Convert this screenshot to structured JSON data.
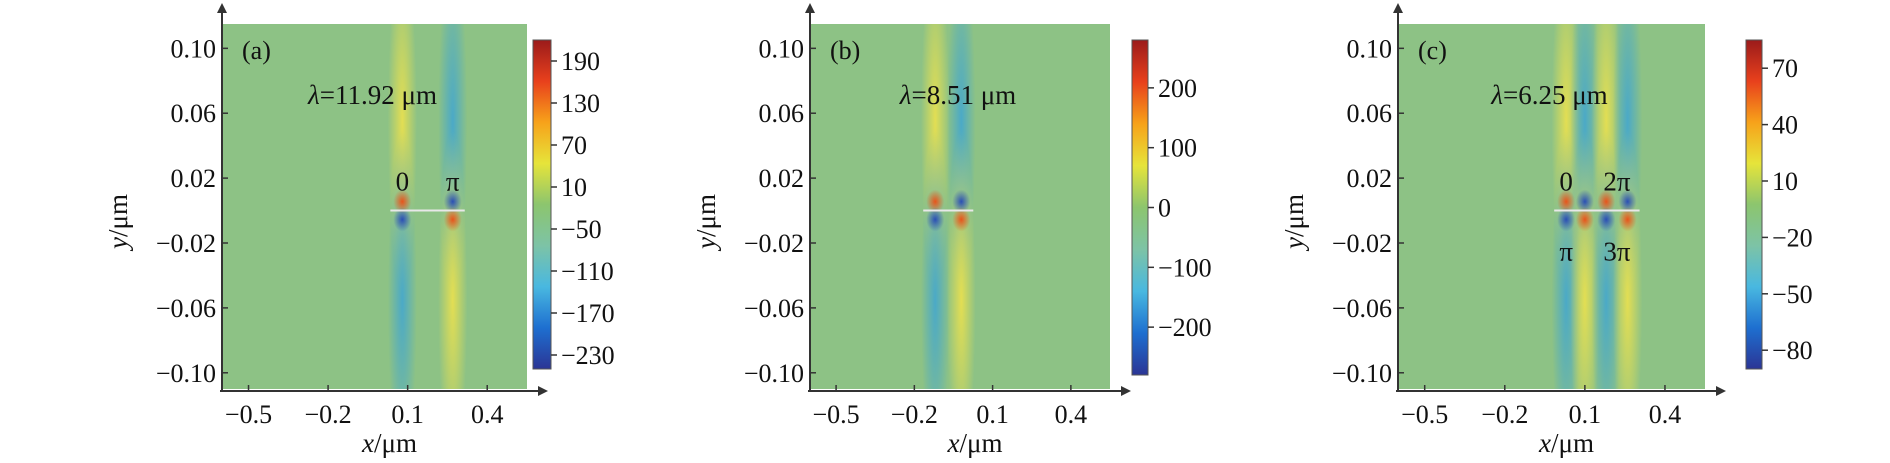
{
  "chart_data": [
    {
      "type": "heatmap",
      "panel_label": "(a)",
      "annotation": {
        "prefix": "λ",
        "text": "=11.92 μm"
      },
      "xlabel": {
        "var": "x",
        "unit": "/μm"
      },
      "ylabel": {
        "var": "y",
        "unit": "/μm"
      },
      "xlim": [
        -0.6,
        0.55
      ],
      "ylim": [
        -0.11,
        0.115
      ],
      "xticks": [
        -0.5,
        -0.2,
        0.1,
        0.4
      ],
      "xtick_labels": [
        "−0.5",
        "−0.2",
        "0.1",
        "0.4"
      ],
      "yticks": [
        0.1,
        0.06,
        0.02,
        -0.02,
        -0.06,
        -0.1
      ],
      "ytick_labels": [
        "0.10",
        "0.06",
        "0.02",
        "−0.02",
        "−0.06",
        "−0.10"
      ],
      "colorbar": {
        "range": [
          -250,
          220
        ],
        "ticks": [
          190,
          130,
          70,
          10,
          -50,
          -110,
          -170,
          -230
        ],
        "tick_labels": [
          "190",
          "130",
          "70",
          "10",
          "−50",
          "−110",
          "−170",
          "−230"
        ]
      },
      "phase_labels": [
        {
          "text": "0",
          "x": 0.08,
          "y": 0.012
        },
        {
          "text": "π",
          "x": 0.27,
          "y": 0.012
        }
      ],
      "field_features": [
        {
          "x": 0.08,
          "y": 0.0,
          "sign": "dipole",
          "strength": 1.0
        },
        {
          "x": 0.27,
          "y": 0.0,
          "sign": "dipole-inverted",
          "strength": 1.0
        }
      ]
    },
    {
      "type": "heatmap",
      "panel_label": "(b)",
      "annotation": {
        "prefix": "λ",
        "text": "=8.51 μm"
      },
      "xlabel": {
        "var": "x",
        "unit": "/μm"
      },
      "ylabel": {
        "var": "y",
        "unit": "/μm"
      },
      "xlim": [
        -0.6,
        0.55
      ],
      "ylim": [
        -0.11,
        0.115
      ],
      "xticks": [
        -0.5,
        -0.2,
        0.1,
        0.4
      ],
      "xtick_labels": [
        "−0.5",
        "−0.2",
        "0.1",
        "0.4"
      ],
      "yticks": [
        0.1,
        0.06,
        0.02,
        -0.02,
        -0.06,
        -0.1
      ],
      "ytick_labels": [
        "0.10",
        "0.06",
        "0.02",
        "−0.02",
        "−0.06",
        "−0.10"
      ],
      "colorbar": {
        "range": [
          -280,
          280
        ],
        "ticks": [
          200,
          100,
          0,
          -100,
          -200
        ],
        "tick_labels": [
          "200",
          "100",
          "0",
          "−100",
          "−200"
        ]
      },
      "phase_labels": [],
      "field_features": [
        {
          "x": -0.12,
          "y": 0.0,
          "sign": "dipole",
          "strength": 1.0
        },
        {
          "x": -0.02,
          "y": 0.0,
          "sign": "dipole-inverted",
          "strength": 1.0
        }
      ]
    },
    {
      "type": "heatmap",
      "panel_label": "(c)",
      "annotation": {
        "prefix": "λ",
        "text": "=6.25 μm"
      },
      "xlabel": {
        "var": "x",
        "unit": "/μm"
      },
      "ylabel": {
        "var": "y",
        "unit": "/μm"
      },
      "xlim": [
        -0.6,
        0.55
      ],
      "ylim": [
        -0.11,
        0.115
      ],
      "xticks": [
        -0.5,
        -0.2,
        0.1,
        0.4
      ],
      "xtick_labels": [
        "−0.5",
        "−0.2",
        "0.1",
        "0.4"
      ],
      "yticks": [
        0.1,
        0.06,
        0.02,
        -0.02,
        -0.06,
        -0.1
      ],
      "ytick_labels": [
        "0.10",
        "0.06",
        "0.02",
        "−0.02",
        "−0.06",
        "−0.10"
      ],
      "colorbar": {
        "range": [
          -90,
          85
        ],
        "ticks": [
          70,
          40,
          10,
          -20,
          -50,
          -80
        ],
        "tick_labels": [
          "70",
          "40",
          "10",
          "−20",
          "−50",
          "−80"
        ]
      },
      "phase_labels": [
        {
          "text": "0",
          "x": 0.03,
          "y": 0.012
        },
        {
          "text": "2π",
          "x": 0.22,
          "y": 0.012
        },
        {
          "text": "π",
          "x": 0.03,
          "y": -0.035
        },
        {
          "text": "3π",
          "x": 0.22,
          "y": -0.035
        }
      ],
      "field_features": [
        {
          "x": 0.03,
          "y": 0.0,
          "sign": "dipole",
          "strength": 1.0
        },
        {
          "x": 0.1,
          "y": 0.0,
          "sign": "dipole-inverted",
          "strength": 1.0
        },
        {
          "x": 0.18,
          "y": 0.0,
          "sign": "dipole",
          "strength": 1.0
        },
        {
          "x": 0.26,
          "y": 0.0,
          "sign": "dipole-inverted",
          "strength": 1.0
        }
      ]
    }
  ],
  "colormap": [
    "#2b3595",
    "#1e6fd0",
    "#49b8e0",
    "#7dc3a6",
    "#8cc56e",
    "#e6e43a",
    "#f7a21a",
    "#e8401c",
    "#9b1b1b"
  ],
  "background_color": "#8dc285"
}
